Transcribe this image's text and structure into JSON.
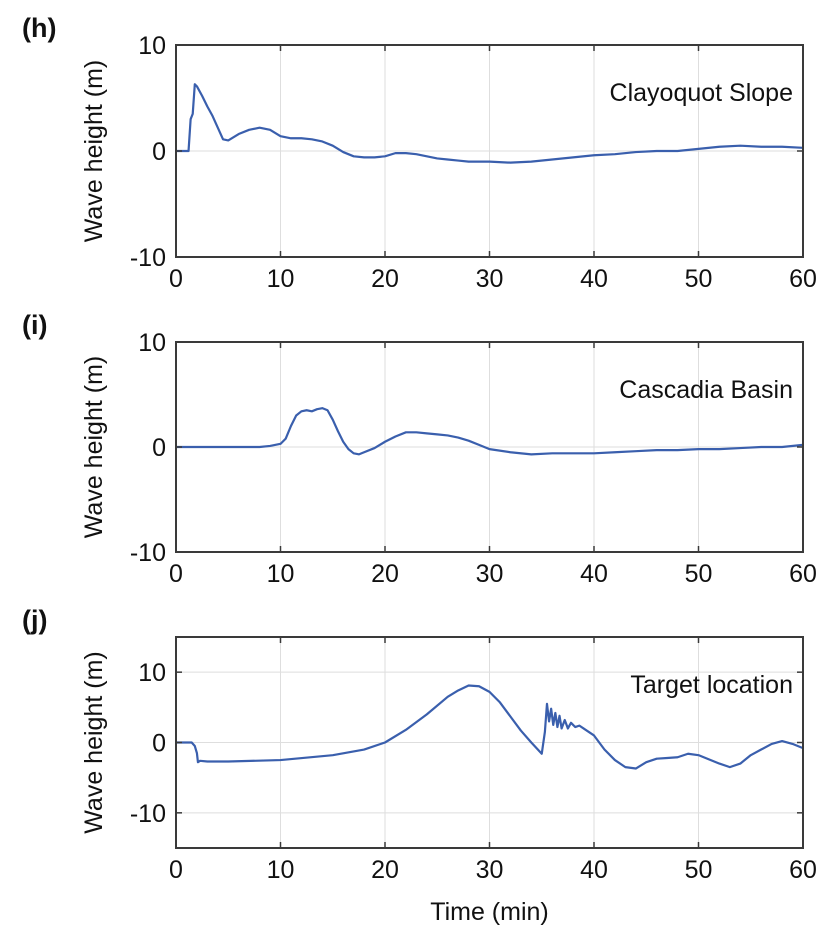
{
  "colors": {
    "series": "#3a5fad",
    "axis": "#3a3a3a",
    "grid": "#dedede"
  },
  "chart_data": [
    {
      "type": "line",
      "panel_label": "(h)",
      "annotation": "Clayoquot Slope",
      "ylabel": "Wave height (m)",
      "xlabel": "",
      "xlim": [
        0,
        60
      ],
      "ylim": [
        -10,
        10
      ],
      "xticks": [
        "0",
        "10",
        "20",
        "30",
        "40",
        "50",
        "60"
      ],
      "yticks": [
        "-10",
        "0",
        "10"
      ],
      "grid": true,
      "series": [
        {
          "x": [
            0,
            1.2,
            1.4,
            1.6,
            1.8,
            2.0,
            2.5,
            3.0,
            3.5,
            4.0,
            4.5,
            5.0,
            6.0,
            7.0,
            8.0,
            9.0,
            10.0,
            11.0,
            12.0,
            13.0,
            14.0,
            15.0,
            16.0,
            17.0,
            18.0,
            19.0,
            20.0,
            21.0,
            22.0,
            23.0,
            24.0,
            25.0,
            26.0,
            27.0,
            28.0,
            29.0,
            30.0,
            32.0,
            34.0,
            36.0,
            38.0,
            40.0,
            42.0,
            44.0,
            46.0,
            48.0,
            50.0,
            52.0,
            54.0,
            56.0,
            58.0,
            60.0
          ],
          "y": [
            0,
            0,
            3.0,
            3.5,
            6.3,
            6.1,
            5.2,
            4.2,
            3.3,
            2.2,
            1.1,
            1.0,
            1.6,
            2.0,
            2.2,
            2.0,
            1.4,
            1.2,
            1.2,
            1.1,
            0.9,
            0.5,
            -0.1,
            -0.5,
            -0.6,
            -0.6,
            -0.5,
            -0.2,
            -0.2,
            -0.3,
            -0.5,
            -0.7,
            -0.8,
            -0.9,
            -1.0,
            -1.0,
            -1.0,
            -1.1,
            -1.0,
            -0.8,
            -0.6,
            -0.4,
            -0.3,
            -0.1,
            0.0,
            0.0,
            0.2,
            0.4,
            0.5,
            0.4,
            0.4,
            0.3
          ]
        }
      ]
    },
    {
      "type": "line",
      "panel_label": "(i)",
      "annotation": "Cascadia Basin",
      "ylabel": "Wave height (m)",
      "xlabel": "",
      "xlim": [
        0,
        60
      ],
      "ylim": [
        -10,
        10
      ],
      "xticks": [
        "0",
        "10",
        "20",
        "30",
        "40",
        "50",
        "60"
      ],
      "yticks": [
        "-10",
        "0",
        "10"
      ],
      "grid": true,
      "series": [
        {
          "x": [
            0,
            5,
            8,
            9,
            10,
            10.5,
            11,
            11.5,
            12,
            12.5,
            13,
            13.5,
            14,
            14.5,
            15,
            15.5,
            16,
            16.5,
            17,
            17.5,
            18,
            19,
            20,
            21,
            22,
            23,
            24,
            25,
            26,
            27,
            28,
            29,
            30,
            32,
            34,
            36,
            38,
            40,
            42,
            44,
            46,
            48,
            50,
            52,
            54,
            56,
            58,
            60
          ],
          "y": [
            0,
            0,
            0,
            0.1,
            0.3,
            0.8,
            2.0,
            3.0,
            3.4,
            3.5,
            3.4,
            3.6,
            3.7,
            3.5,
            2.6,
            1.5,
            0.5,
            -0.2,
            -0.6,
            -0.7,
            -0.5,
            -0.1,
            0.5,
            1.0,
            1.4,
            1.4,
            1.3,
            1.2,
            1.1,
            0.9,
            0.6,
            0.2,
            -0.2,
            -0.5,
            -0.7,
            -0.6,
            -0.6,
            -0.6,
            -0.5,
            -0.4,
            -0.3,
            -0.3,
            -0.2,
            -0.2,
            -0.1,
            0.0,
            0.0,
            0.2
          ]
        }
      ]
    },
    {
      "type": "line",
      "panel_label": "(j)",
      "annotation": "Target location",
      "ylabel": "Wave height (m)",
      "xlabel": "Time (min)",
      "xlim": [
        0,
        60
      ],
      "ylim": [
        -15,
        15
      ],
      "xticks": [
        "0",
        "10",
        "20",
        "30",
        "40",
        "50",
        "60"
      ],
      "yticks": [
        "-10",
        "0",
        "10"
      ],
      "grid": true,
      "series": [
        {
          "x": [
            0,
            1.5,
            1.8,
            2.0,
            2.1,
            2.3,
            3,
            5,
            10,
            15,
            18,
            20,
            22,
            24,
            26,
            27,
            28,
            29,
            30,
            31,
            32,
            33,
            34,
            35,
            35.3,
            35.5,
            35.7,
            35.9,
            36.1,
            36.3,
            36.5,
            36.7,
            36.9,
            37.2,
            37.5,
            37.8,
            38.2,
            38.6,
            39,
            39.5,
            40,
            41,
            42,
            43,
            44,
            45,
            46,
            47,
            48,
            49,
            50,
            51,
            52,
            53,
            54,
            55,
            56,
            57,
            58,
            59,
            60
          ],
          "y": [
            0,
            0,
            -0.5,
            -1.5,
            -2.8,
            -2.6,
            -2.7,
            -2.7,
            -2.5,
            -1.8,
            -1.0,
            0.0,
            1.8,
            4.0,
            6.5,
            7.4,
            8.1,
            8.0,
            7.2,
            5.7,
            3.7,
            1.7,
            0,
            -1.6,
            1.5,
            5.5,
            3.0,
            4.8,
            2.5,
            4.2,
            2.2,
            3.8,
            2.0,
            3.2,
            2.0,
            2.8,
            2.2,
            2.4,
            2.0,
            1.5,
            1.0,
            -1.0,
            -2.5,
            -3.5,
            -3.7,
            -2.8,
            -2.3,
            -2.2,
            -2.1,
            -1.6,
            -1.8,
            -2.4,
            -3.0,
            -3.5,
            -3.0,
            -1.8,
            -1.0,
            -0.2,
            0.2,
            -0.2,
            -0.8
          ]
        }
      ]
    }
  ]
}
